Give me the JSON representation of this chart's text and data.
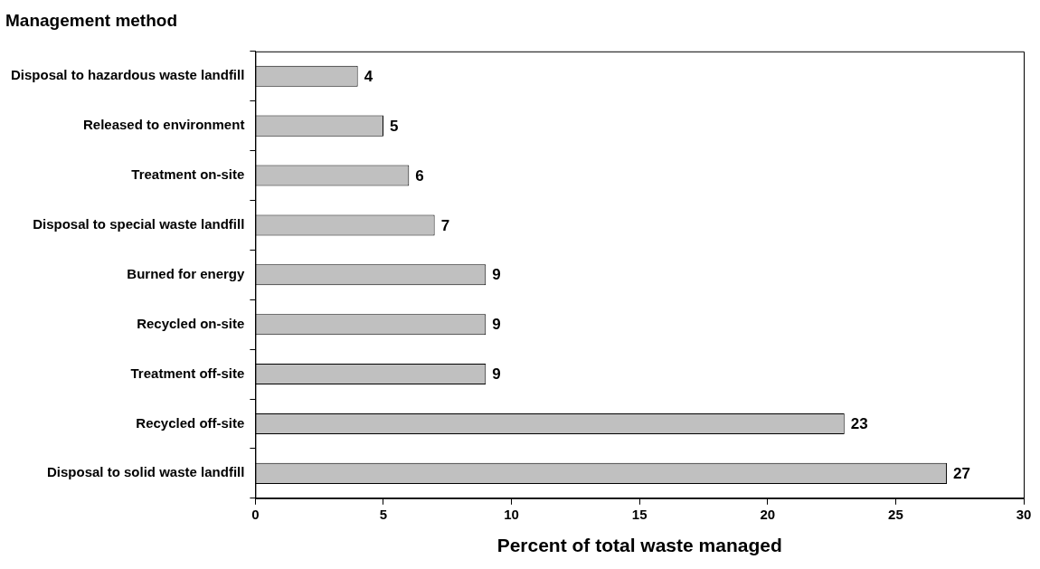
{
  "chart_data": {
    "type": "bar",
    "orientation": "horizontal",
    "title": "Management method",
    "xlabel": "Percent of total waste managed",
    "categories": [
      "Disposal to hazardous waste landfill",
      "Released to environment",
      "Treatment on-site",
      "Disposal to special waste landfill",
      "Burned for energy",
      "Recycled on-site",
      "Treatment off-site",
      "Recycled off-site",
      "Disposal to solid waste landfill"
    ],
    "values": [
      4,
      5,
      6,
      7,
      9,
      9,
      9,
      23,
      27
    ],
    "color": "#c0c0c0",
    "xlim": [
      0,
      30
    ],
    "xticks": [
      0,
      5,
      10,
      15,
      20,
      25,
      30
    ],
    "data_labels": true,
    "grid": false,
    "legend": false
  }
}
